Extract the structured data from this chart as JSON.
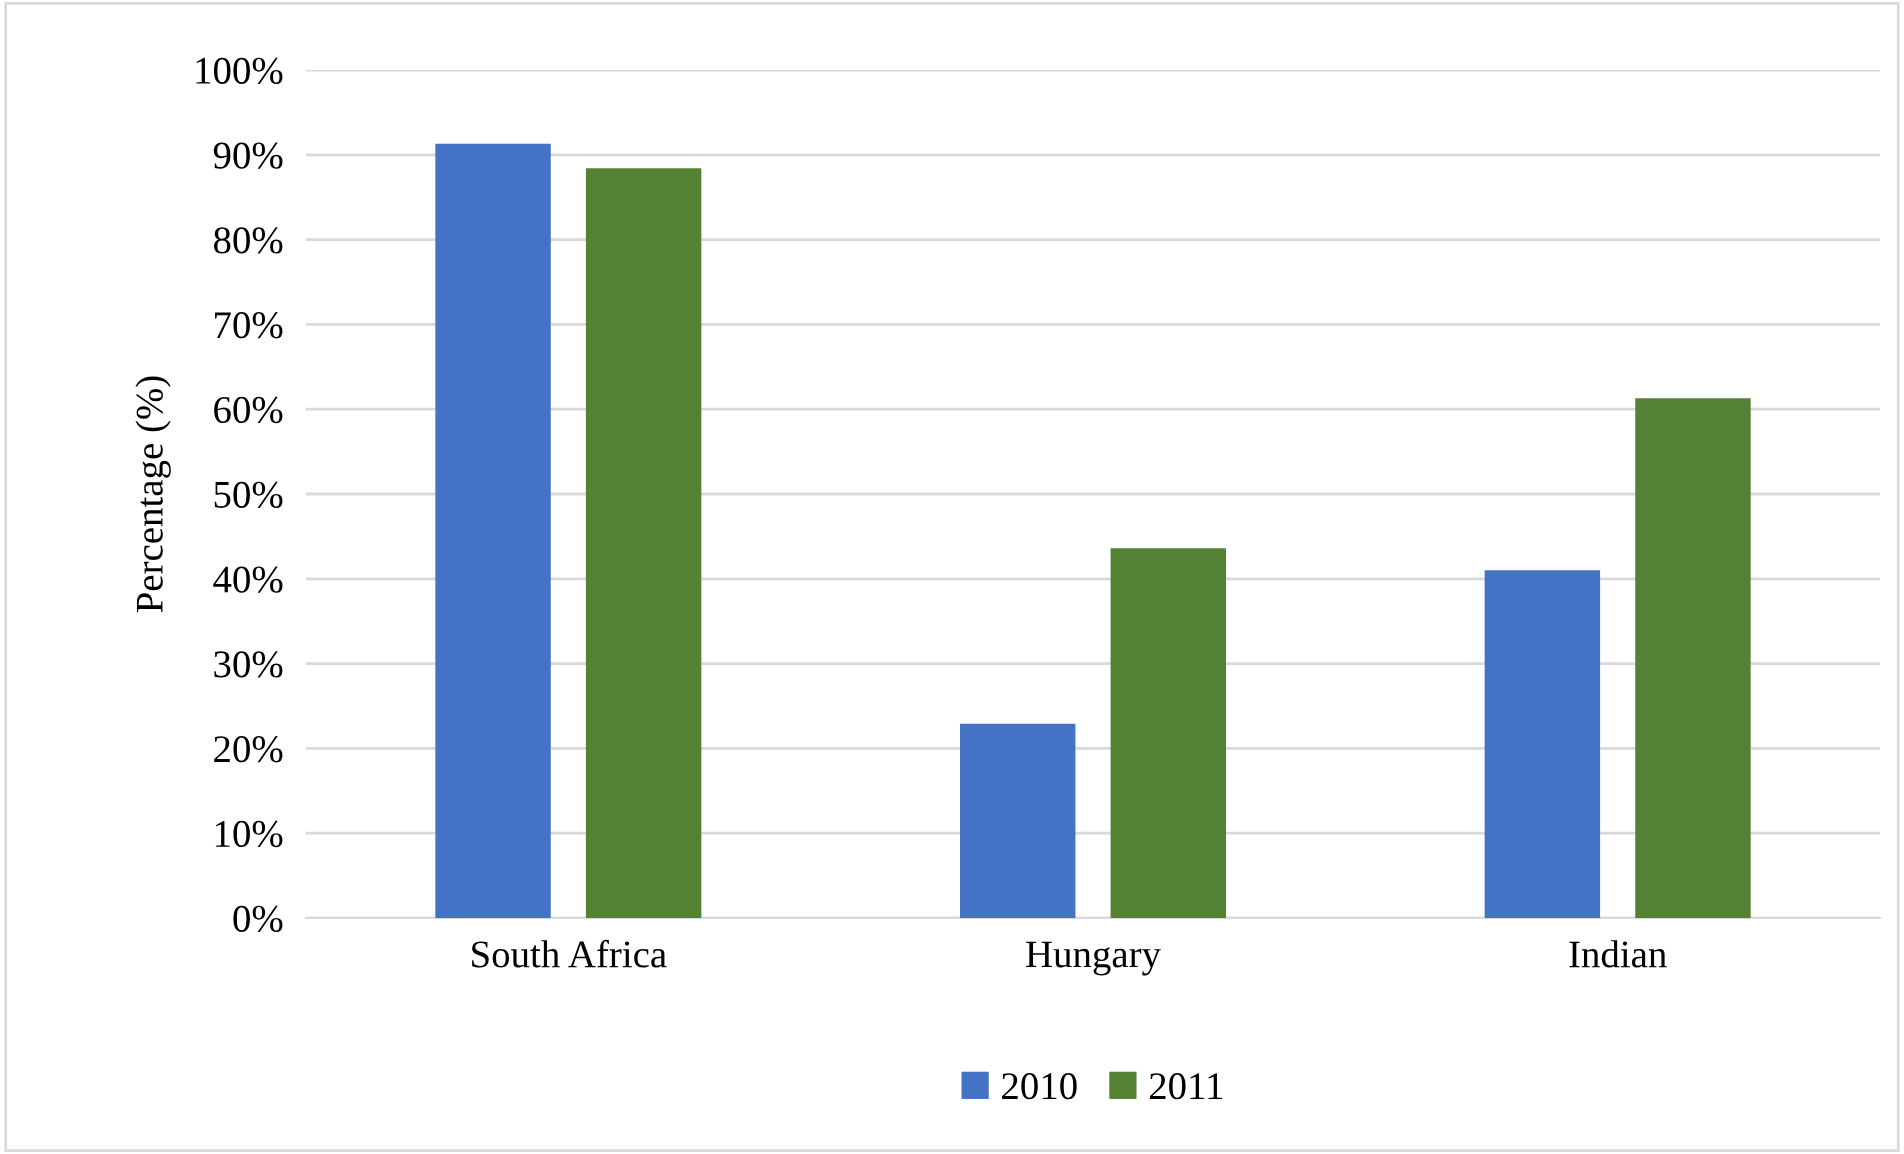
{
  "chart_data": {
    "type": "bar",
    "ylabel": "Percentage (%)",
    "categories": [
      "South Africa",
      "Hungary",
      "Indian"
    ],
    "series": [
      {
        "name": "2010",
        "color": "#4472c4",
        "values": [
          91.3,
          22.9,
          41.0
        ]
      },
      {
        "name": "2011",
        "color": "#548235",
        "values": [
          88.4,
          43.6,
          61.3
        ]
      }
    ],
    "ylim": [
      0,
      100
    ],
    "yticks": [
      {
        "value": 0,
        "label": "0%"
      },
      {
        "value": 10,
        "label": "10%"
      },
      {
        "value": 20,
        "label": "20%"
      },
      {
        "value": 30,
        "label": "30%"
      },
      {
        "value": 40,
        "label": "40%"
      },
      {
        "value": 50,
        "label": "50%"
      },
      {
        "value": 60,
        "label": "60%"
      },
      {
        "value": 70,
        "label": "70%"
      },
      {
        "value": 80,
        "label": "80%"
      },
      {
        "value": 90,
        "label": "90%"
      },
      {
        "value": 100,
        "label": "100%"
      }
    ],
    "grid": "y",
    "legend": "bottom"
  }
}
